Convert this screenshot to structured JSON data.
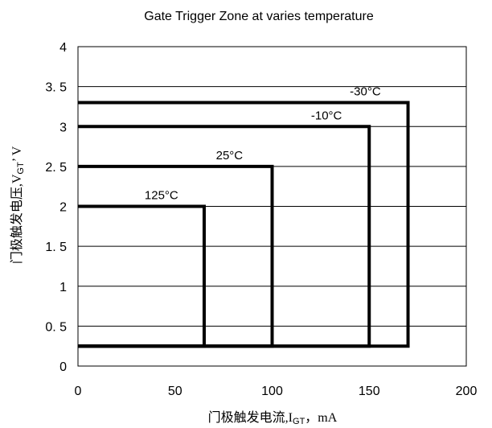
{
  "chart_data": {
    "type": "line",
    "title": "Gate Trigger Zone at varies temperature",
    "xlabel": {
      "main": "门极触发电流,I",
      "sub": "GT",
      "unit": "，mA"
    },
    "ylabel": {
      "main": "门极触发电压,V",
      "sub": "GT",
      "unit": "’ V"
    },
    "xlim": [
      0,
      200
    ],
    "ylim": [
      0,
      4
    ],
    "x_ticks": [
      {
        "value": 0,
        "label": "0"
      },
      {
        "value": 50,
        "label": "50"
      },
      {
        "value": 100,
        "label": "100"
      },
      {
        "value": 150,
        "label": "150"
      },
      {
        "value": 200,
        "label": "200"
      }
    ],
    "y_ticks": [
      {
        "value": 0,
        "label": "0"
      },
      {
        "value": 0.5,
        "label": "0. 5"
      },
      {
        "value": 1,
        "label": "1"
      },
      {
        "value": 1.5,
        "label": "1. 5"
      },
      {
        "value": 2,
        "label": "2"
      },
      {
        "value": 2.5,
        "label": "2. 5"
      },
      {
        "value": 3,
        "label": "3"
      },
      {
        "value": 3.5,
        "label": "3. 5"
      },
      {
        "value": 4,
        "label": "4"
      }
    ],
    "grid": {
      "horizontal": true,
      "vertical": false
    },
    "baseline_vgt": 0.25,
    "series": [
      {
        "name": "125°C",
        "igt_max": 65,
        "vgt_max": 2.0
      },
      {
        "name": "25°C",
        "igt_max": 100,
        "vgt_max": 2.5
      },
      {
        "name": "-10°C",
        "igt_max": 150,
        "vgt_max": 3.0
      },
      {
        "name": "-30°C",
        "igt_max": 170,
        "vgt_max": 3.3
      }
    ]
  }
}
